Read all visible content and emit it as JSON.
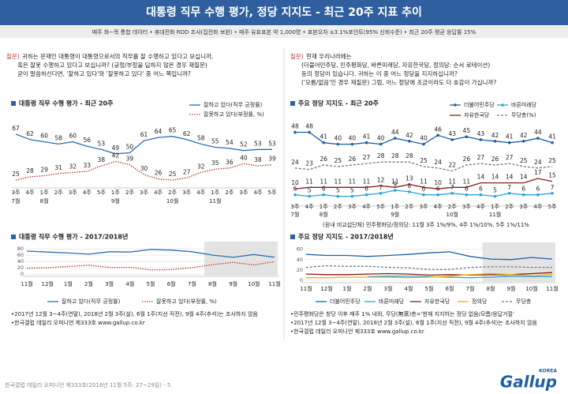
{
  "header": {
    "title": "대통령 직무 수행 평가, 정당 지지도 - 최근 20주 지표 추이",
    "subtitle": "매주 화~목 통합 데이터 • 휴대전화 RDD 조사(집전화 보완) • 매주 유효표본 약 1,000명 • 표본오차 ±3.1%포인트(95% 신뢰수준) • 최근 20주 평균 응답률 15%"
  },
  "question_left": {
    "label": "질문)",
    "lines": [
      "귀하는 문재인 대통령이 대통령으로서의 직무를 잘 수행하고 있다고 보십니까,",
      "혹은 잘못 수행하고 있다고 보십니까? (긍정/부정을 답하지 않은 경우 재질문)",
      "굳이 말씀하신다면, '잘하고 있다'와 '잘못하고 있다' 중 어느 쪽입니까?"
    ]
  },
  "question_right": {
    "label": "질문)",
    "lines": [
      "현재 우리나라에는",
      "(더불어민주당, 민주평화당, 바른미래당, 자유한국당, 정의당: 순서 로테이션)",
      "등의 정당이 있습니다. 귀하는 이 중 어느 정당을 지지하십니까?",
      "('모름/없음'인 경우 재질문) 그럼, 어느 정당에 조금이라도 더 호감이 가십니까?"
    ]
  },
  "chart_data": [
    {
      "type": "line",
      "title": "대통령 직무 수행 평가 - 최근 20주",
      "show_values": true,
      "categories": [
        "3주",
        "4주",
        "1주",
        "2주",
        "3주",
        "4주",
        "5주",
        "1주",
        "2주",
        "3주",
        "4주",
        "2주",
        "3주",
        "4주",
        "1주",
        "2주",
        "3주",
        "4주",
        "5주"
      ],
      "months": [
        "7월",
        null,
        "8월",
        null,
        null,
        null,
        null,
        "9월",
        null,
        null,
        null,
        "10월",
        null,
        null,
        "11월",
        null,
        null,
        null,
        null
      ],
      "ylim": [
        20,
        72
      ],
      "series": [
        {
          "name": "잘하고 있다(직무 긍정률)",
          "color": "#2f6db3",
          "style": "solid",
          "marker": false,
          "values": [
            67,
            62,
            60,
            58,
            60,
            56,
            53,
            49,
            50,
            61,
            64,
            65,
            62,
            58,
            55,
            54,
            52,
            53,
            53
          ]
        },
        {
          "name": "잘못하고 있다(부정률, %)",
          "color": "#c0392b",
          "style": "dotted",
          "marker": false,
          "values": [
            25,
            28,
            29,
            31,
            32,
            33,
            38,
            42,
            39,
            30,
            26,
            25,
            27,
            32,
            35,
            36,
            40,
            38,
            39
          ]
        }
      ]
    },
    {
      "type": "line",
      "title": "주요 정당 지지도 - 최근 20주",
      "show_values": true,
      "categories": [
        "3주",
        "4주",
        "1주",
        "2주",
        "3주",
        "4주",
        "5주",
        "1주",
        "2주",
        "3주",
        "4주",
        "2주",
        "3주",
        "4주",
        "1주",
        "2주",
        "3주",
        "4주",
        "5주"
      ],
      "months": [
        "7월",
        null,
        "8월",
        null,
        null,
        null,
        null,
        "9월",
        null,
        null,
        null,
        "10월",
        null,
        null,
        "11월",
        null,
        null,
        null,
        null
      ],
      "ylim": [
        0,
        52
      ],
      "annotation": "(원내 비교섭단체) 민주평화당/정의당: 11월 3주 1%/9%, 4주 1%/10%, 5주 1%/11%",
      "series": [
        {
          "name": "더불어민주당",
          "color": "#1f5fa8",
          "style": "solid",
          "marker": true,
          "values": [
            48,
            48,
            41,
            40,
            40,
            41,
            40,
            44,
            42,
            40,
            46,
            43,
            45,
            43,
            42,
            41,
            42,
            44,
            41
          ]
        },
        {
          "name": "바른미래당",
          "color": "#29a6d9",
          "style": "solid",
          "marker": true,
          "values": [
            6,
            5,
            6,
            5,
            5,
            6,
            7,
            9,
            8,
            6,
            6,
            7,
            6,
            6,
            5,
            7,
            6,
            6,
            7
          ]
        },
        {
          "name": "자유한국당",
          "color": "#8b1a1a",
          "style": "solid",
          "marker": false,
          "values": [
            10,
            11,
            11,
            11,
            11,
            11,
            12,
            11,
            13,
            11,
            10,
            11,
            11,
            14,
            14,
            14,
            14,
            17,
            15
          ]
        },
        {
          "name": "무당층(%)",
          "color": "#777777",
          "style": "dashed",
          "marker": false,
          "values": [
            24,
            23,
            26,
            25,
            26,
            27,
            28,
            28,
            28,
            25,
            24,
            22,
            26,
            27,
            26,
            27,
            25,
            24,
            25
          ]
        }
      ]
    },
    {
      "type": "line",
      "title": "대통령 직무 수행 평가 - 2017/2018년",
      "show_values": false,
      "grid": true,
      "categories": [
        "11월",
        "12월",
        "1월",
        "2월",
        "3월",
        "4월",
        "5월",
        "6월",
        "7월",
        "8월",
        "9월",
        "10월",
        "11월"
      ],
      "ylim": [
        0,
        88
      ],
      "yticks": [
        0,
        20,
        40,
        60,
        80
      ],
      "series": [
        {
          "name": "잘하고 있다(직무 긍정률)",
          "color": "#2f6db3",
          "style": "solid",
          "marker": false,
          "values": [
            73,
            70,
            67,
            63,
            71,
            70,
            78,
            76,
            71,
            60,
            53,
            62,
            53
          ]
        },
        {
          "name": "잘못하고 있다(부정률, %)",
          "color": "#c0392b",
          "style": "dotted",
          "marker": false,
          "values": [
            18,
            20,
            24,
            28,
            21,
            21,
            13,
            14,
            20,
            30,
            37,
            29,
            39
          ]
        }
      ]
    },
    {
      "type": "line",
      "title": "주요 정당 지지도 - 2017/2018년",
      "show_values": false,
      "grid": true,
      "categories": [
        "11월",
        "12월",
        "1월",
        "2월",
        "3월",
        "4월",
        "5월",
        "6월",
        "7월",
        "8월",
        "9월",
        "10월",
        "11월"
      ],
      "ylim": [
        0,
        64
      ],
      "yticks": [
        0,
        20,
        40,
        60
      ],
      "series": [
        {
          "name": "더불어민주당",
          "color": "#1f5fa8",
          "style": "solid",
          "marker": false,
          "values": [
            50,
            48,
            48,
            46,
            48,
            50,
            53,
            55,
            46,
            41,
            40,
            44,
            41
          ]
        },
        {
          "name": "바른미래당",
          "color": "#29a6d9",
          "style": "solid",
          "marker": false,
          "values": [
            null,
            null,
            null,
            7,
            8,
            8,
            7,
            6,
            5,
            6,
            8,
            7,
            7
          ]
        },
        {
          "name": "자유한국당",
          "color": "#8b1a1a",
          "style": "solid",
          "marker": false,
          "values": [
            12,
            11,
            11,
            12,
            13,
            12,
            10,
            11,
            10,
            11,
            11,
            13,
            15
          ]
        },
        {
          "name": "정의당",
          "color": "#f0b400",
          "style": "solid",
          "marker": false,
          "values": [
            5,
            5,
            6,
            6,
            6,
            5,
            6,
            8,
            11,
            13,
            11,
            9,
            11
          ]
        },
        {
          "name": "무당층",
          "color": "#777777",
          "style": "dashed",
          "marker": false,
          "values": [
            25,
            28,
            27,
            27,
            25,
            24,
            21,
            21,
            25,
            26,
            26,
            25,
            25
          ]
        }
      ]
    }
  ],
  "notes_left": [
    "•2017년 12월 3~4주(연말), 2018년 2월 3주(설), 6월 1주(지선 직전), 9월 4주(추석)는 조사하지 않음",
    "•한국갤럽 데일리 오피니언 제333호 www.gallup.co.kr"
  ],
  "notes_right": [
    "•민주평화당은 창당 이후 매주 1% 내외, 무당(無黨)층='현재 지지하는 정당 없음/모름/응답거절'",
    "•2017년 12월 3~4주(연말), 2018년 2월 3주(설), 6월 1주(지선 직전), 9월 4주(추석)는 조사하지 않음",
    "•한국갤럽 데일리 오피니언 제333호 www.gallup.co.kr"
  ],
  "footer": {
    "text": "한국갤럽 데일리 오피니언 제333호(2018년 11월 5주: 27~29일) - 5",
    "logo": "Gallup",
    "logo_sub": "KOREA"
  }
}
